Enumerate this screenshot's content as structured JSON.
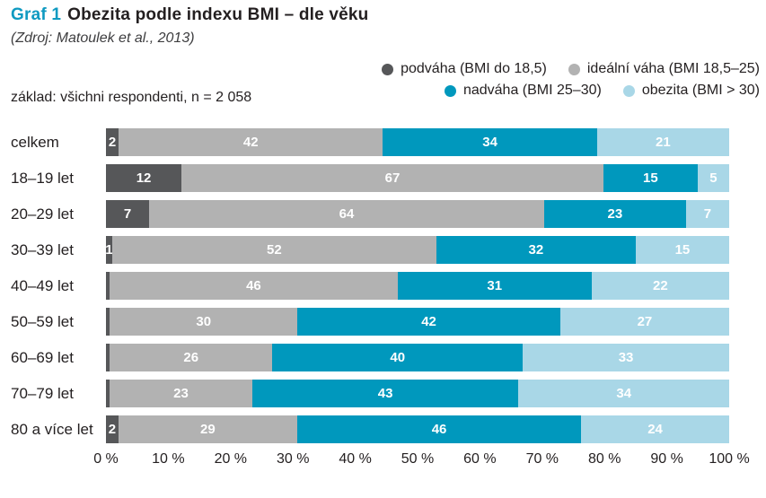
{
  "header": {
    "title_prefix": "Graf 1",
    "title": "Obezita podle indexu BMI – dle věku",
    "subtitle": "(Zdroj: Matoulek et al., 2013)"
  },
  "base_note": "základ: všichni respondenti, n = 2 058",
  "colors": {
    "accent_title": "#0f9ac1",
    "podvaha": "#565759",
    "idealni_vaha": "#b2b2b2",
    "nadvaha": "#0098bd",
    "obezita": "#a9d7e7",
    "bar_value_text": "#ffffff"
  },
  "legend": {
    "rows": [
      [
        {
          "label": "podváha (BMI do 18,5)",
          "color": "#565759"
        },
        {
          "label": "ideální váha (BMI 18,5–25)",
          "color": "#b2b2b2"
        }
      ],
      [
        {
          "label": "nadváha (BMI 25–30)",
          "color": "#0098bd"
        },
        {
          "label": "obezita (BMI > 30)",
          "color": "#a9d7e7"
        }
      ]
    ]
  },
  "chart_data": {
    "type": "bar",
    "orientation": "horizontal-stacked",
    "title": "Obezita podle indexu BMI – dle věku",
    "categories": [
      "celkem",
      "18–19 let",
      "20–29 let",
      "30–39 let",
      "40–49 let",
      "50–59 let",
      "60–69 let",
      "70–79 let",
      "80 a více let"
    ],
    "series": [
      {
        "name": "podváha (BMI do 18,5)",
        "color": "#565759",
        "values": [
          2,
          12,
          7,
          1,
          1,
          1,
          1,
          1,
          2
        ],
        "labels": [
          "2",
          "12",
          "7",
          "1",
          "",
          "",
          "",
          "",
          "2"
        ],
        "display_values": [
          2,
          12,
          7,
          1,
          0.6,
          0.6,
          0.6,
          0.6,
          2
        ]
      },
      {
        "name": "ideální váha (BMI 18,5–25)",
        "color": "#b2b2b2",
        "values": [
          42,
          67,
          64,
          52,
          46,
          30,
          26,
          23,
          29
        ]
      },
      {
        "name": "nadváha (BMI 25–30)",
        "color": "#0098bd",
        "values": [
          34,
          15,
          23,
          32,
          31,
          42,
          40,
          43,
          46
        ]
      },
      {
        "name": "obezita (BMI > 30)",
        "color": "#a9d7e7",
        "values": [
          21,
          5,
          7,
          15,
          22,
          27,
          33,
          34,
          24
        ]
      }
    ],
    "x_ticks": [
      "0 %",
      "10 %",
      "20 %",
      "30 %",
      "40 %",
      "50 %",
      "60 %",
      "70 %",
      "80 %",
      "90 %",
      "100 %"
    ],
    "xlim": [
      0,
      100
    ],
    "unit": "%",
    "legend_position": "top-right",
    "grid": false
  }
}
